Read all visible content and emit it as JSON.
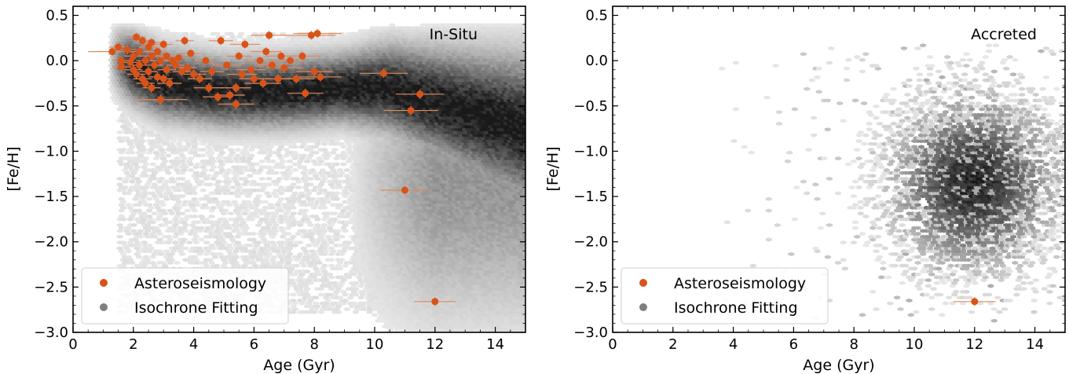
{
  "chart_data": [
    {
      "type": "scatter",
      "panel_label": "In-Situ",
      "xlabel": "Age (Gyr)",
      "ylabel": "[Fe/H]",
      "xlim": [
        0,
        15
      ],
      "ylim": [
        -3.0,
        0.6
      ],
      "xticks": [
        0,
        2,
        4,
        6,
        8,
        10,
        12,
        14
      ],
      "xtick_labels": [
        "0",
        "2",
        "4",
        "6",
        "8",
        "10",
        "12",
        "14"
      ],
      "yticks": [
        -3.0,
        -2.5,
        -2.0,
        -1.5,
        -1.0,
        -0.5,
        0.0,
        0.5
      ],
      "ytick_labels": [
        "−3.0",
        "−2.5",
        "−2.0",
        "−1.5",
        "−1.0",
        "−0.5",
        "0.0",
        "0.5"
      ],
      "legend": {
        "position": "lower-left",
        "entries": [
          {
            "label": "Asteroseismology",
            "color": "#d95319"
          },
          {
            "label": "Isochrone Fitting",
            "color": "#7f7f7f"
          }
        ]
      },
      "background": {
        "kind": "hexbin-density",
        "description_only": false,
        "ridge": [
          [
            1.5,
            0.0
          ],
          [
            3,
            -0.25
          ],
          [
            5,
            -0.35
          ],
          [
            7,
            -0.35
          ],
          [
            9,
            -0.3
          ],
          [
            10.5,
            -0.3
          ],
          [
            12,
            -0.45
          ],
          [
            13.5,
            -0.6
          ],
          [
            15,
            -0.75
          ]
        ]
      },
      "series": [
        {
          "name": "Asteroseismology",
          "color": "#d95319",
          "points": [
            {
              "x": 1.3,
              "y": 0.1,
              "xerr": 0.8
            },
            {
              "x": 1.5,
              "y": 0.15,
              "xerr": 0.3
            },
            {
              "x": 1.6,
              "y": 0.0,
              "xerr": 0.3
            },
            {
              "x": 1.6,
              "y": -0.07,
              "xerr": 0.3
            },
            {
              "x": 1.8,
              "y": 0.12,
              "xerr": 0.3
            },
            {
              "x": 1.9,
              "y": -0.02,
              "xerr": 0.3
            },
            {
              "x": 2.0,
              "y": 0.05,
              "xerr": 0.3
            },
            {
              "x": 2.0,
              "y": -0.1,
              "xerr": 0.3
            },
            {
              "x": 2.1,
              "y": 0.26,
              "xerr": 0.3
            },
            {
              "x": 2.1,
              "y": -0.15,
              "xerr": 0.3
            },
            {
              "x": 2.2,
              "y": 0.1,
              "xerr": 0.3
            },
            {
              "x": 2.2,
              "y": -0.05,
              "xerr": 0.3
            },
            {
              "x": 2.3,
              "y": 0.22,
              "xerr": 0.3
            },
            {
              "x": 2.3,
              "y": -0.2,
              "xerr": 0.3
            },
            {
              "x": 2.4,
              "y": 0.0,
              "xerr": 0.3
            },
            {
              "x": 2.4,
              "y": -0.25,
              "xerr": 0.3
            },
            {
              "x": 2.5,
              "y": 0.15,
              "xerr": 0.3
            },
            {
              "x": 2.5,
              "y": -0.12,
              "xerr": 0.3
            },
            {
              "x": 2.6,
              "y": 0.2,
              "xerr": 0.3
            },
            {
              "x": 2.6,
              "y": 0.05,
              "xerr": 0.3
            },
            {
              "x": 2.6,
              "y": -0.3,
              "xerr": 0.3
            },
            {
              "x": 2.7,
              "y": -0.05,
              "xerr": 0.3
            },
            {
              "x": 2.8,
              "y": 0.1,
              "xerr": 0.3
            },
            {
              "x": 2.8,
              "y": -0.18,
              "xerr": 0.3
            },
            {
              "x": 2.9,
              "y": 0.0,
              "xerr": 0.3
            },
            {
              "x": 2.9,
              "y": -0.43,
              "xerr": 0.9
            },
            {
              "x": 3.0,
              "y": 0.18,
              "xerr": 0.3
            },
            {
              "x": 3.0,
              "y": -0.2,
              "xerr": 0.3
            },
            {
              "x": 3.1,
              "y": 0.05,
              "xerr": 0.3
            },
            {
              "x": 3.1,
              "y": -0.1,
              "xerr": 0.3
            },
            {
              "x": 3.2,
              "y": -0.25,
              "xerr": 0.4
            },
            {
              "x": 3.3,
              "y": 0.0,
              "xerr": 0.3
            },
            {
              "x": 3.4,
              "y": -0.05,
              "xerr": 0.3
            },
            {
              "x": 3.5,
              "y": 0.03,
              "xerr": 0.3
            },
            {
              "x": 3.6,
              "y": -0.12,
              "xerr": 0.3
            },
            {
              "x": 3.7,
              "y": 0.22,
              "xerr": 0.3
            },
            {
              "x": 3.8,
              "y": -0.08,
              "xerr": 0.3
            },
            {
              "x": 3.9,
              "y": 0.08,
              "xerr": 0.3
            },
            {
              "x": 4.0,
              "y": -0.15,
              "xerr": 0.4
            },
            {
              "x": 4.2,
              "y": -0.2,
              "xerr": 0.4
            },
            {
              "x": 4.4,
              "y": 0.0,
              "xerr": 0.4
            },
            {
              "x": 4.5,
              "y": -0.3,
              "xerr": 0.5
            },
            {
              "x": 4.6,
              "y": -0.12,
              "xerr": 0.4
            },
            {
              "x": 4.8,
              "y": -0.4,
              "xerr": 0.5
            },
            {
              "x": 4.9,
              "y": 0.22,
              "xerr": 0.4
            },
            {
              "x": 5.1,
              "y": -0.05,
              "xerr": 0.5
            },
            {
              "x": 5.2,
              "y": -0.38,
              "xerr": 0.5
            },
            {
              "x": 5.4,
              "y": -0.3,
              "xerr": 0.5
            },
            {
              "x": 5.4,
              "y": -0.48,
              "xerr": 0.6
            },
            {
              "x": 5.5,
              "y": 0.05,
              "xerr": 0.4
            },
            {
              "x": 5.6,
              "y": -0.15,
              "xerr": 0.5
            },
            {
              "x": 5.7,
              "y": 0.18,
              "xerr": 0.5
            },
            {
              "x": 5.9,
              "y": -0.1,
              "xerr": 0.5
            },
            {
              "x": 6.0,
              "y": -0.2,
              "xerr": 0.5
            },
            {
              "x": 6.2,
              "y": 0.0,
              "xerr": 0.5
            },
            {
              "x": 6.3,
              "y": -0.25,
              "xerr": 0.6
            },
            {
              "x": 6.4,
              "y": 0.1,
              "xerr": 0.5
            },
            {
              "x": 6.5,
              "y": 0.28,
              "xerr": 0.6
            },
            {
              "x": 6.6,
              "y": -0.05,
              "xerr": 0.5
            },
            {
              "x": 6.8,
              "y": -0.2,
              "xerr": 0.5
            },
            {
              "x": 6.9,
              "y": 0.05,
              "xerr": 0.5
            },
            {
              "x": 7.0,
              "y": -0.08,
              "xerr": 0.6
            },
            {
              "x": 7.2,
              "y": 0.0,
              "xerr": 0.5
            },
            {
              "x": 7.4,
              "y": -0.2,
              "xerr": 0.6
            },
            {
              "x": 7.6,
              "y": 0.05,
              "xerr": 0.6
            },
            {
              "x": 7.7,
              "y": -0.36,
              "xerr": 0.6
            },
            {
              "x": 7.9,
              "y": 0.28,
              "xerr": 0.8
            },
            {
              "x": 8.0,
              "y": -0.12,
              "xerr": 0.6
            },
            {
              "x": 8.1,
              "y": 0.3,
              "xerr": 0.8
            },
            {
              "x": 8.2,
              "y": -0.18,
              "xerr": 0.7
            },
            {
              "x": 10.3,
              "y": -0.14,
              "xerr": 0.8
            },
            {
              "x": 11.2,
              "y": -0.55,
              "xerr": 0.9
            },
            {
              "x": 11.5,
              "y": -0.37,
              "xerr": 0.8
            },
            {
              "x": 11.0,
              "y": -1.43,
              "xerr": 0.8
            },
            {
              "x": 12.0,
              "y": -2.66,
              "xerr": 0.7
            }
          ]
        },
        {
          "name": "Isochrone Fitting",
          "color": "#7f7f7f",
          "rendered_as": "hexbin-background"
        }
      ]
    },
    {
      "type": "scatter",
      "panel_label": "Accreted",
      "xlabel": "Age (Gyr)",
      "ylabel": "[Fe/H]",
      "xlim": [
        0,
        15
      ],
      "ylim": [
        -3.0,
        0.6
      ],
      "xticks": [
        0,
        2,
        4,
        6,
        8,
        10,
        12,
        14
      ],
      "xtick_labels": [
        "0",
        "2",
        "4",
        "6",
        "8",
        "10",
        "12",
        "14"
      ],
      "yticks": [
        -3.0,
        -2.5,
        -2.0,
        -1.5,
        -1.0,
        -0.5,
        0.0,
        0.5
      ],
      "ytick_labels": [
        "−3.0",
        "−2.5",
        "−2.0",
        "−1.5",
        "−1.0",
        "−0.5",
        "0.0",
        "0.5"
      ],
      "legend": {
        "position": "lower-left",
        "entries": [
          {
            "label": "Asteroseismology",
            "color": "#d95319"
          },
          {
            "label": "Isochrone Fitting",
            "color": "#7f7f7f"
          }
        ]
      },
      "background": {
        "kind": "hexbin-density",
        "center": [
          12.0,
          -1.35
        ]
      },
      "series": [
        {
          "name": "Asteroseismology",
          "color": "#d95319",
          "points": [
            {
              "x": 12.0,
              "y": -2.66,
              "xerr": 0.7
            }
          ]
        },
        {
          "name": "Isochrone Fitting",
          "color": "#7f7f7f",
          "rendered_as": "hexbin-background"
        }
      ]
    }
  ]
}
